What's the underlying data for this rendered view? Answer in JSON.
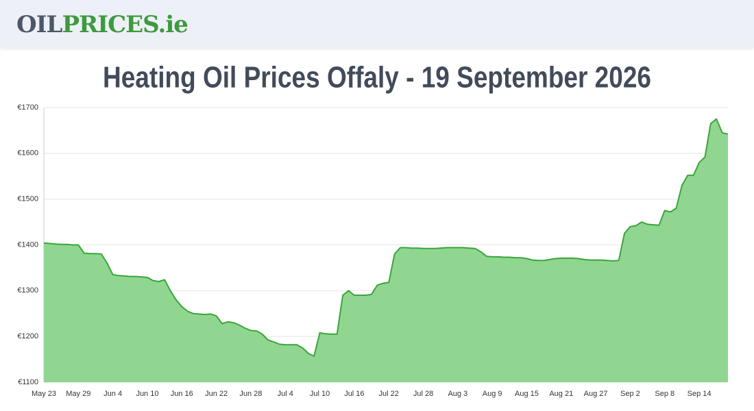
{
  "header": {
    "logo_gray": "OIL",
    "logo_green": "PRICES.ie"
  },
  "chart_data": {
    "type": "area",
    "title": "Heating Oil Prices Offaly - 19 September 2026",
    "categories": [
      "May 23",
      null,
      null,
      null,
      null,
      null,
      "May 29",
      null,
      null,
      null,
      null,
      null,
      "Jun 4",
      null,
      null,
      null,
      null,
      null,
      "Jun 10",
      null,
      null,
      null,
      null,
      null,
      "Jun 16",
      null,
      null,
      null,
      null,
      null,
      "Jun 22",
      null,
      null,
      null,
      null,
      null,
      "Jun 28",
      null,
      null,
      null,
      null,
      null,
      "Jul 4",
      null,
      null,
      null,
      null,
      null,
      "Jul 10",
      null,
      null,
      null,
      null,
      null,
      "Jul 16",
      null,
      null,
      null,
      null,
      null,
      "Jul 22",
      null,
      null,
      null,
      null,
      null,
      "Jul 28",
      null,
      null,
      null,
      null,
      null,
      "Aug 3",
      null,
      null,
      null,
      null,
      null,
      "Aug 9",
      null,
      null,
      null,
      null,
      null,
      "Aug 15",
      null,
      null,
      null,
      null,
      null,
      "Aug 21",
      null,
      null,
      null,
      null,
      null,
      "Aug 27",
      null,
      null,
      null,
      null,
      null,
      "Sep 2",
      null,
      null,
      null,
      null,
      null,
      "Sep 8",
      null,
      null,
      null,
      null,
      null,
      "Sep 14",
      null,
      null,
      null,
      null,
      null
    ],
    "series": [
      {
        "color": "#3aa53a",
        "fill": "#90d690",
        "values": [
          1404,
          1403,
          1402,
          1401,
          1401,
          1400,
          1400,
          1382,
          1381,
          1381,
          1380,
          1360,
          1335,
          1333,
          1332,
          1331,
          1331,
          1330,
          1329,
          1322,
          1320,
          1324,
          1300,
          1280,
          1265,
          1255,
          1250,
          1249,
          1248,
          1249,
          1245,
          1228,
          1232,
          1230,
          1225,
          1218,
          1213,
          1212,
          1205,
          1192,
          1188,
          1183,
          1182,
          1182,
          1182,
          1175,
          1163,
          1157,
          1208,
          1206,
          1205,
          1205,
          1290,
          1300,
          1290,
          1290,
          1290,
          1292,
          1312,
          1316,
          1318,
          1380,
          1394,
          1394,
          1393,
          1393,
          1392,
          1392,
          1392,
          1393,
          1394,
          1394,
          1394,
          1394,
          1393,
          1392,
          1385,
          1375,
          1374,
          1374,
          1373,
          1373,
          1372,
          1372,
          1370,
          1367,
          1366,
          1366,
          1368,
          1370,
          1371,
          1371,
          1371,
          1370,
          1368,
          1367,
          1367,
          1367,
          1366,
          1365,
          1366,
          1425,
          1440,
          1442,
          1450,
          1445,
          1444,
          1443,
          1475,
          1472,
          1480,
          1530,
          1552,
          1552,
          1580,
          1592,
          1665,
          1675,
          1645,
          1642
        ]
      }
    ],
    "ylim": [
      1100,
      1700
    ],
    "yticks": [
      {
        "value": 1100,
        "label": "€1100"
      },
      {
        "value": 1200,
        "label": "€1200"
      },
      {
        "value": 1300,
        "label": "€1300"
      },
      {
        "value": 1400,
        "label": "€1400"
      },
      {
        "value": 1500,
        "label": "€1500"
      },
      {
        "value": 1600,
        "label": "€1600"
      },
      {
        "value": 1700,
        "label": "€1700"
      }
    ],
    "grid": true
  }
}
